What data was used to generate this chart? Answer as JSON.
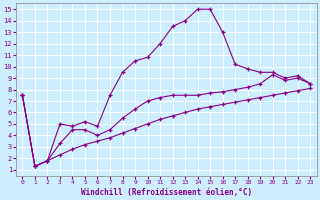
{
  "xlabel": "Windchill (Refroidissement éolien,°C)",
  "background_color": "#cceeff",
  "line_color": "#880088",
  "xlim": [
    -0.5,
    23.5
  ],
  "ylim": [
    0.5,
    15.5
  ],
  "xticks": [
    0,
    1,
    2,
    3,
    4,
    5,
    6,
    7,
    8,
    9,
    10,
    11,
    12,
    13,
    14,
    15,
    16,
    17,
    18,
    19,
    20,
    21,
    22,
    23
  ],
  "yticks": [
    1,
    2,
    3,
    4,
    5,
    6,
    7,
    8,
    9,
    10,
    11,
    12,
    13,
    14,
    15
  ],
  "line1_x": [
    0,
    1,
    2,
    3,
    4,
    5,
    6,
    7,
    8,
    9,
    10,
    11,
    12,
    13,
    14,
    15,
    16,
    17,
    18,
    19,
    20,
    21,
    22,
    23
  ],
  "line1_y": [
    7.5,
    1.3,
    1.8,
    5.0,
    4.8,
    5.2,
    4.8,
    7.5,
    9.5,
    10.5,
    10.8,
    12.0,
    13.5,
    14.0,
    15.0,
    15.0,
    13.0,
    10.2,
    9.8,
    9.5,
    9.5,
    9.0,
    9.2,
    8.5
  ],
  "line2_x": [
    0,
    1,
    2,
    3,
    4,
    5,
    6,
    7,
    8,
    9,
    10,
    11,
    12,
    13,
    14,
    15,
    16,
    17,
    18,
    19,
    20,
    21,
    22,
    23
  ],
  "line2_y": [
    7.5,
    1.3,
    1.8,
    3.3,
    4.5,
    4.5,
    4.0,
    4.5,
    5.5,
    6.3,
    7.0,
    7.3,
    7.5,
    7.5,
    7.5,
    7.7,
    7.8,
    8.0,
    8.2,
    8.5,
    9.3,
    8.8,
    9.0,
    8.5
  ],
  "line3_x": [
    0,
    1,
    2,
    3,
    4,
    5,
    6,
    7,
    8,
    9,
    10,
    11,
    12,
    13,
    14,
    15,
    16,
    17,
    18,
    19,
    20,
    21,
    22,
    23
  ],
  "line3_y": [
    7.5,
    1.3,
    1.8,
    2.3,
    2.8,
    3.2,
    3.5,
    3.8,
    4.2,
    4.6,
    5.0,
    5.4,
    5.7,
    6.0,
    6.3,
    6.5,
    6.7,
    6.9,
    7.1,
    7.3,
    7.5,
    7.7,
    7.9,
    8.1
  ]
}
